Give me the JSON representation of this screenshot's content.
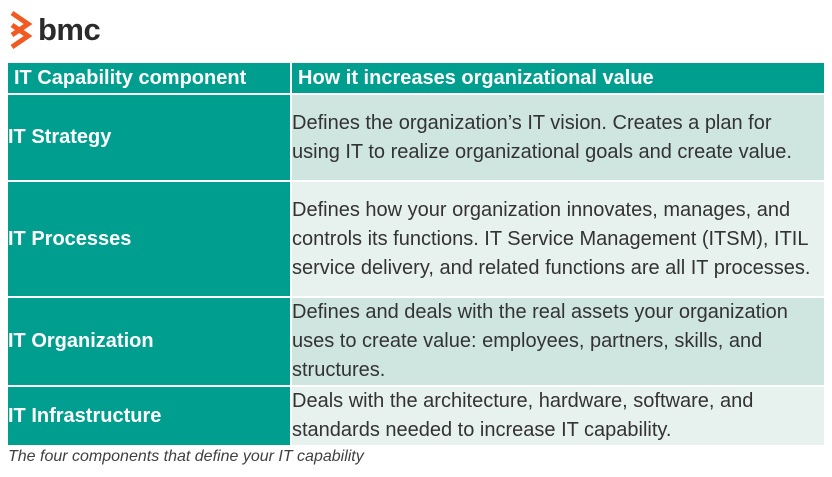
{
  "brand": {
    "name": "bmc",
    "accent_color": "#f15a22"
  },
  "table": {
    "header_color": "#009e8f",
    "headers": [
      "IT Capability component",
      "How it increases organizational value"
    ],
    "rows": [
      {
        "component": "IT Strategy",
        "description": "Defines the organization’s IT vision. Creates a plan for using IT to realize organizational goals and create value."
      },
      {
        "component": "IT Processes",
        "description": "Defines how your organization innovates, manages, and controls its functions. IT Service Management (ITSM), ITIL service delivery, and related functions are all IT processes."
      },
      {
        "component": "IT Organization",
        "description": "Defines and deals with the real assets your organization uses to create value: employees, partners, skills, and structures."
      },
      {
        "component": "IT Infrastructure",
        "description": "Deals with the architecture, hardware, software, and standards needed to increase IT capability."
      }
    ]
  },
  "caption": "The four components that define your IT capability"
}
